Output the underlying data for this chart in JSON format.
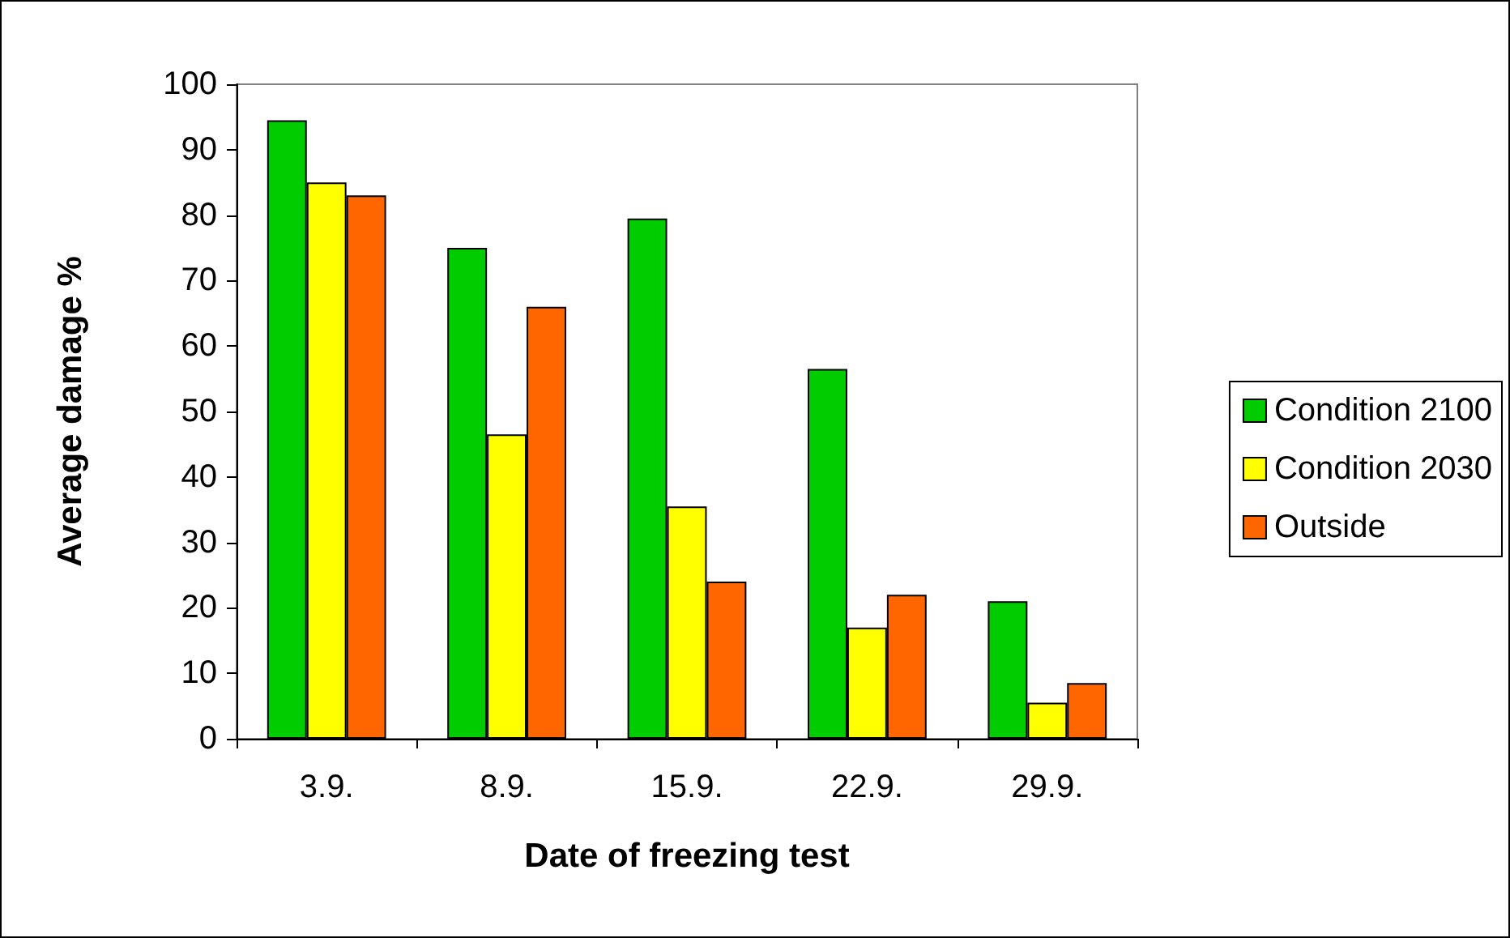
{
  "chart_data": {
    "type": "bar",
    "xlabel": "Date of freezing test",
    "ylabel": "Average damage %",
    "categories": [
      "3.9.",
      "8.9.",
      "15.9.",
      "22.9.",
      "29.9."
    ],
    "series": [
      {
        "name": "Condition 2100",
        "color": "#00cc00",
        "values": [
          94.5,
          75,
          79.5,
          56.5,
          21
        ]
      },
      {
        "name": "Condition 2030",
        "color": "#ffff00",
        "values": [
          85,
          46.5,
          35.5,
          17,
          5.5
        ]
      },
      {
        "name": "Outside",
        "color": "#ff6600",
        "values": [
          83,
          66,
          24,
          22,
          8.5
        ]
      }
    ],
    "ylim": [
      0,
      100
    ],
    "yticks": [
      0,
      10,
      20,
      30,
      40,
      50,
      60,
      70,
      80,
      90,
      100
    ],
    "grid": false,
    "legend": "right"
  }
}
